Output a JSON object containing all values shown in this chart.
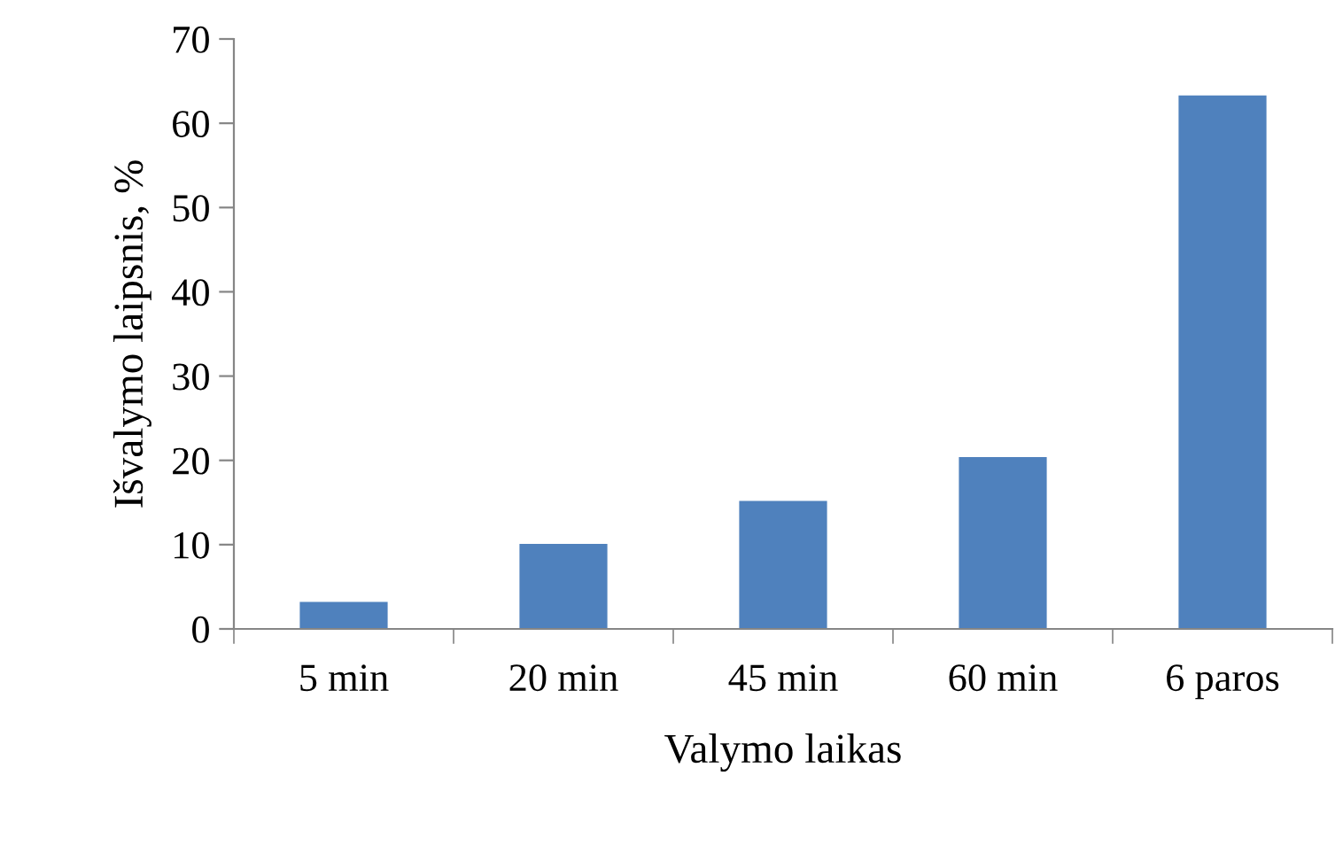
{
  "chart_data": {
    "type": "bar",
    "xlabel": "Valymo laikas",
    "ylabel": "Išvalymo laipsnis, %",
    "categories": [
      "5 min",
      "20 min",
      "45 min",
      "60 min",
      "6 paros"
    ],
    "values": [
      3.2,
      10.1,
      15.2,
      20.4,
      63.3
    ],
    "color": "#4f81bd",
    "ylim": [
      0,
      70
    ],
    "yticks": [
      0,
      10,
      20,
      30,
      40,
      50,
      60,
      70
    ],
    "grid": false,
    "legend": false
  }
}
